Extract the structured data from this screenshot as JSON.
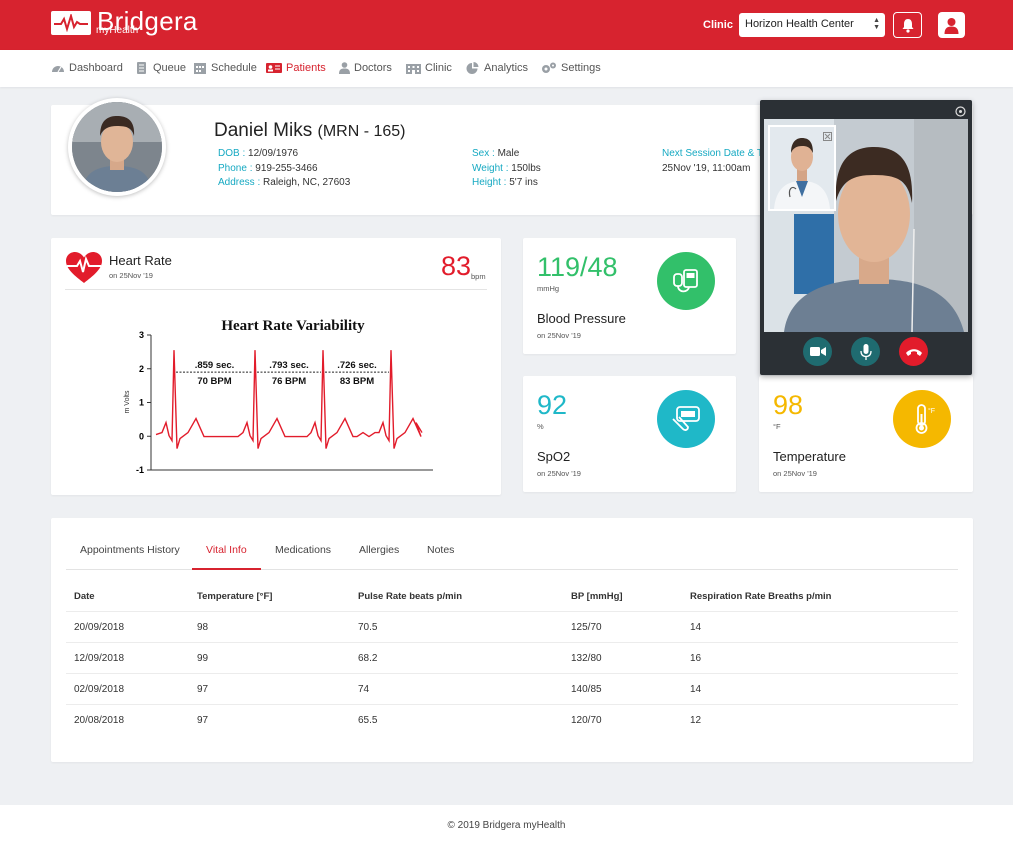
{
  "app": {
    "brand": "Bridgera",
    "brand_sub": "myHealth"
  },
  "header": {
    "clinic_label": "Clinic",
    "clinic_selected": "Horizon Health Center"
  },
  "nav": [
    {
      "label": "Dashboard",
      "icon": "dashboard-icon"
    },
    {
      "label": "Queue",
      "icon": "queue-icon"
    },
    {
      "label": "Schedule",
      "icon": "calendar-icon"
    },
    {
      "label": "Patients",
      "icon": "patients-icon",
      "active": true
    },
    {
      "label": "Doctors",
      "icon": "doctor-icon"
    },
    {
      "label": "Clinic",
      "icon": "clinic-icon"
    },
    {
      "label": "Analytics",
      "icon": "analytics-icon"
    },
    {
      "label": "Settings",
      "icon": "gear-icon"
    }
  ],
  "patient": {
    "name": "Daniel Miks",
    "mrn": "(MRN - 165)",
    "dob_label": "DOB : ",
    "dob": "12/09/1976",
    "phone_label": "Phone : ",
    "phone": "919-255-3466",
    "address_label": "Address : ",
    "address": "Raleigh, NC, 27603",
    "sex_label": "Sex : ",
    "sex": "Male",
    "weight_label": "Weight : ",
    "weight": "150lbs",
    "height_label": "Height : ",
    "height": "5'7 ins",
    "session_label": "Next Session Date & Time",
    "session": "25Nov '19, 11:00am"
  },
  "heart_rate": {
    "title": "Heart Rate",
    "date": "on 25Nov '19",
    "value": "83",
    "unit": "bpm"
  },
  "chart_data": {
    "type": "line",
    "title": "Heart Rate Variability",
    "ylabel": "m Volts",
    "yticks": [
      "3",
      "2",
      "1",
      "0",
      "-1"
    ],
    "ylim": [
      -1,
      3
    ],
    "annotations": [
      {
        "line1": ".859 sec.",
        "line2": "70 BPM"
      },
      {
        "line1": ".793 sec.",
        "line2": "76 BPM"
      },
      {
        "line1": ".726 sec.",
        "line2": "83 BPM"
      }
    ],
    "series_color": "#e21c2b"
  },
  "vitals": {
    "bp": {
      "value": "119/48",
      "unit": "mmHg",
      "name": "Blood Pressure",
      "date": "on 25Nov '19",
      "color": "#32c06a"
    },
    "spo2": {
      "value": "92",
      "unit": "%",
      "name": "SpO2",
      "date": "on 25Nov '19",
      "color": "#1fb8c8"
    },
    "temp": {
      "value": "98",
      "unit": "°F",
      "name": "Temperature",
      "date": "on 25Nov '19",
      "color": "#f5b800"
    }
  },
  "tabs": [
    {
      "label": "Appointments History"
    },
    {
      "label": "Vital Info",
      "active": true
    },
    {
      "label": "Medications"
    },
    {
      "label": "Allergies"
    },
    {
      "label": "Notes"
    }
  ],
  "table": {
    "headers": [
      "Date",
      "Temperature [°F]",
      "Pulse Rate beats p/min",
      "BP [mmHg]",
      "Respiration Rate Breaths p/min"
    ],
    "rows": [
      [
        "20/09/2018",
        "98",
        "70.5",
        "125/70",
        "14"
      ],
      [
        "12/09/2018",
        "99",
        "68.2",
        "132/80",
        "16"
      ],
      [
        "02/09/2018",
        "97",
        "74",
        "140/85",
        "14"
      ],
      [
        "20/08/2018",
        "97",
        "65.5",
        "120/70",
        "12"
      ]
    ]
  },
  "footer": {
    "text": "© 2019 Bridgera myHealth"
  }
}
